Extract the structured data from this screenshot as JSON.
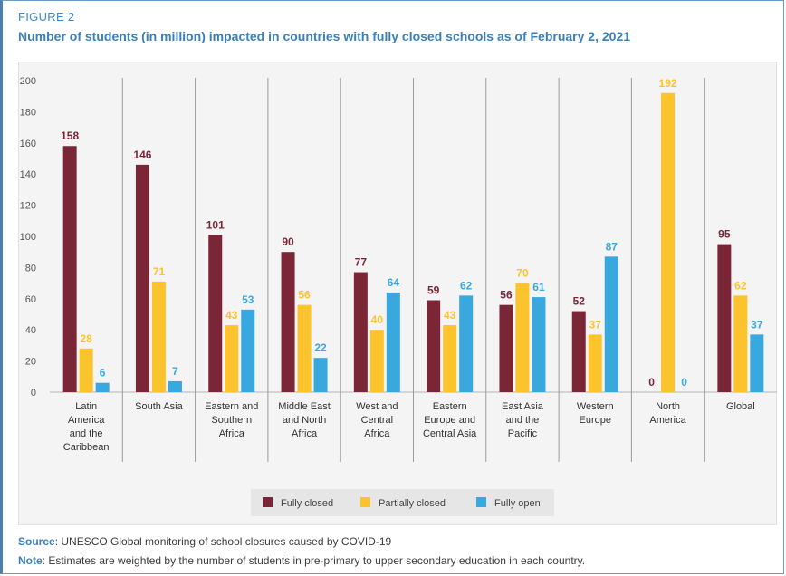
{
  "figure_label": "FIGURE 2",
  "title": "Number of students (in million) impacted in countries with fully closed schools as of February 2, 2021",
  "source_label": "Source",
  "source_text": ": UNESCO Global monitoring of school closures caused by COVID-19",
  "note_label": "Note",
  "note_text": ": Estimates are weighted by the number of students in pre-primary to upper secondary education in each country.",
  "colors": {
    "fully_closed": "#7b2636",
    "partially_closed": "#fcc42c",
    "fully_open": "#39a8de"
  },
  "chart_data": {
    "type": "bar",
    "categories": [
      [
        "Latin",
        "America",
        "and the",
        "Caribbean"
      ],
      [
        "South Asia"
      ],
      [
        "Eastern and",
        "Southern",
        "Africa"
      ],
      [
        "Middle East",
        "and North",
        "Africa"
      ],
      [
        "West and",
        "Central",
        "Africa"
      ],
      [
        "Eastern",
        "Europe and",
        "Central Asia"
      ],
      [
        "East Asia",
        "and the",
        "Pacific"
      ],
      [
        "Western",
        "Europe"
      ],
      [
        "North",
        "America"
      ],
      [
        "Global"
      ]
    ],
    "series": [
      {
        "name": "Fully closed",
        "values": [
          158,
          146,
          101,
          90,
          77,
          59,
          56,
          52,
          0,
          95
        ]
      },
      {
        "name": "Partially closed",
        "values": [
          28,
          71,
          43,
          56,
          40,
          43,
          70,
          37,
          192,
          62
        ]
      },
      {
        "name": "Fully open",
        "values": [
          6,
          7,
          53,
          22,
          64,
          62,
          61,
          87,
          0,
          37
        ]
      }
    ],
    "ylim": [
      0,
      200
    ],
    "yticks": [
      0,
      20,
      40,
      60,
      80,
      100,
      120,
      140,
      160,
      180,
      200
    ],
    "legend": "bottom-center",
    "grid": false
  }
}
